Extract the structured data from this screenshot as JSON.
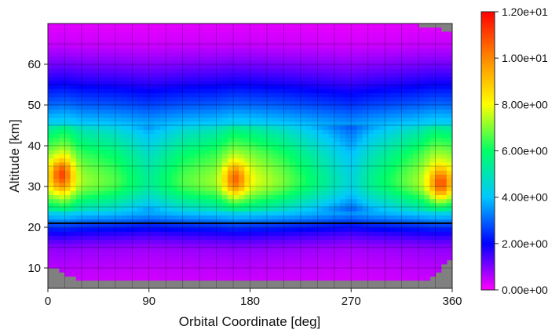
{
  "chart_data": {
    "type": "heatmap",
    "title": "",
    "xlabel": "Orbital Coordinate [deg]",
    "ylabel": "Altitude [km]",
    "xlim": [
      0,
      360
    ],
    "ylim": [
      5,
      70
    ],
    "x_ticks": [
      {
        "value": 0,
        "label": "0"
      },
      {
        "value": 90,
        "label": "90"
      },
      {
        "value": 180,
        "label": "180"
      },
      {
        "value": 270,
        "label": "270"
      },
      {
        "value": 360,
        "label": "360"
      }
    ],
    "y_ticks": [
      {
        "value": 10,
        "label": "10"
      },
      {
        "value": 20,
        "label": "20"
      },
      {
        "value": 30,
        "label": "30"
      },
      {
        "value": 40,
        "label": "40"
      },
      {
        "value": 50,
        "label": "50"
      },
      {
        "value": 60,
        "label": "60"
      }
    ],
    "grid": true,
    "no_data_color": "#808080",
    "colorbar": {
      "min": 0,
      "max": 12,
      "position": "right",
      "ticks": [
        {
          "value": 0,
          "label": "0.00e+00"
        },
        {
          "value": 2,
          "label": "2.00e+00"
        },
        {
          "value": 4,
          "label": "4.00e+00"
        },
        {
          "value": 6,
          "label": "6.00e+00"
        },
        {
          "value": 8,
          "label": "8.00e+00"
        },
        {
          "value": 10,
          "label": "1.00e+01"
        },
        {
          "value": 12,
          "label": "1.20e+01"
        }
      ],
      "colors": [
        "#ff00ff",
        "#0000ff",
        "#00c8ff",
        "#00ff66",
        "#ffff00",
        "#ff8800",
        "#ff0000"
      ]
    },
    "reference_line": {
      "altitude": 21,
      "color": "#000000"
    },
    "x_bins": [
      0,
      15,
      30,
      45,
      60,
      75,
      90,
      105,
      120,
      135,
      150,
      165,
      180,
      195,
      210,
      225,
      240,
      255,
      270,
      285,
      300,
      315,
      330,
      345,
      360
    ],
    "altitude_profile": {
      "altitudes": [
        5,
        10,
        15,
        18,
        20,
        22,
        25,
        28,
        30,
        32,
        35,
        38,
        40,
        43,
        45,
        48,
        50,
        55,
        60,
        65,
        70
      ],
      "values": [
        0.3,
        0.5,
        0.8,
        1.5,
        2.2,
        3.2,
        4.5,
        5.6,
        6.2,
        6.3,
        6.0,
        5.6,
        5.2,
        4.6,
        4.0,
        3.3,
        2.8,
        1.8,
        1.0,
        0.4,
        0.2
      ]
    },
    "longitude_modulation": {
      "x": [
        0,
        15,
        30,
        60,
        90,
        120,
        150,
        165,
        180,
        210,
        240,
        255,
        270,
        285,
        300,
        330,
        345,
        360
      ],
      "factor": [
        1.25,
        1.35,
        1.15,
        1.05,
        0.85,
        1.05,
        1.15,
        1.3,
        1.25,
        1.1,
        0.9,
        0.8,
        0.7,
        0.85,
        0.95,
        1.15,
        1.3,
        1.25
      ]
    },
    "peaks": [
      {
        "x": 12,
        "altitude": 33,
        "value": 11.0
      },
      {
        "x": 167,
        "altitude": 32,
        "value": 10.5
      },
      {
        "x": 350,
        "altitude": 31,
        "value": 10.8
      }
    ]
  }
}
